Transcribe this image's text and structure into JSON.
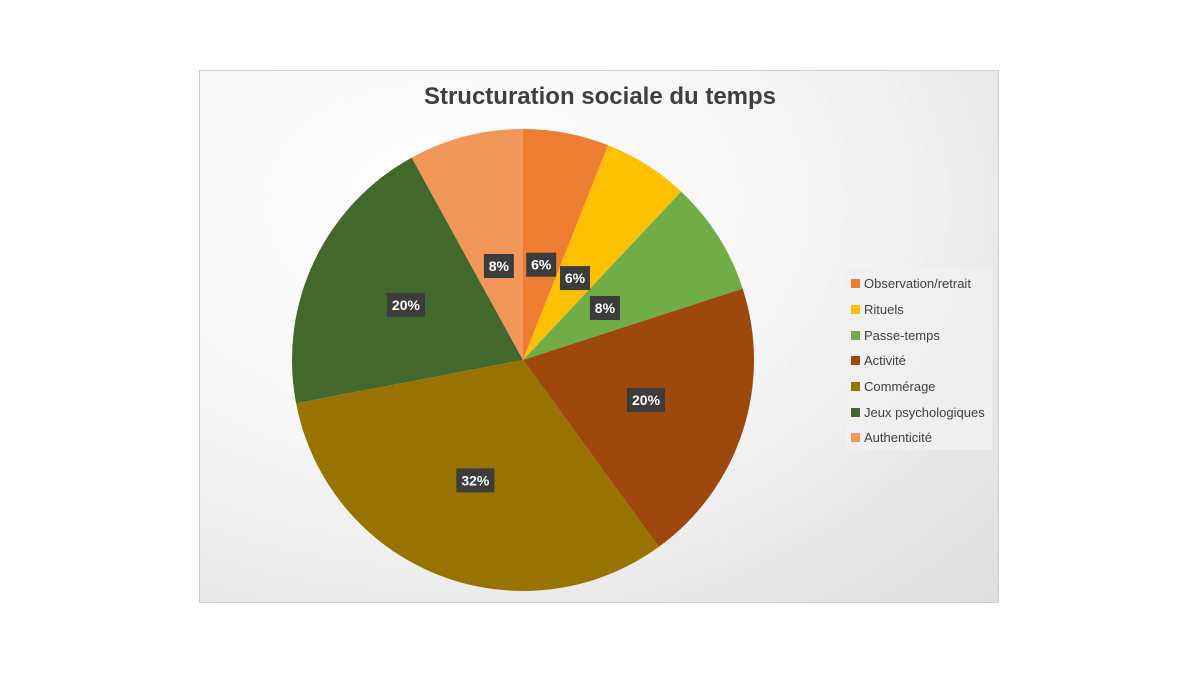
{
  "chart_data": {
    "type": "pie",
    "title": "Structuration sociale du temps",
    "legend_position": "right",
    "slices": [
      {
        "label": "Observation/retrait",
        "value": 6,
        "display": "6%",
        "color": "#ED7D31"
      },
      {
        "label": "Rituels",
        "value": 6,
        "display": "6%",
        "color": "#FFC000"
      },
      {
        "label": "Passe-temps",
        "value": 8,
        "display": "8%",
        "color": "#70AD47"
      },
      {
        "label": "Activité",
        "value": 20,
        "display": "20%",
        "color": "#9E480E"
      },
      {
        "label": "Commérage",
        "value": 32,
        "display": "32%",
        "color": "#997300"
      },
      {
        "label": "Jeux psychologiques",
        "value": 20,
        "display": "20%",
        "color": "#43682B"
      },
      {
        "label": "Authenticité",
        "value": 8,
        "display": "8%",
        "color": "#F1975A"
      }
    ]
  }
}
